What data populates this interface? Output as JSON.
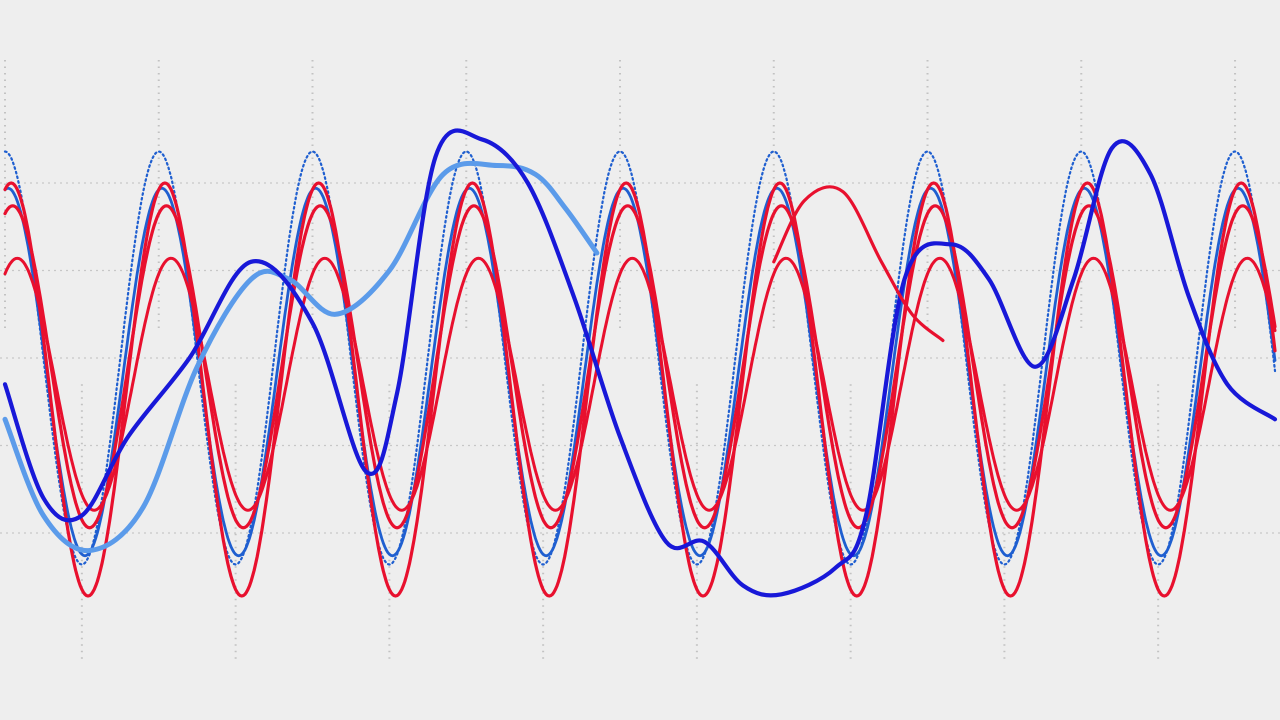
{
  "chart_data": {
    "type": "line",
    "title": "",
    "xlabel": "",
    "ylabel": "",
    "grid": true,
    "legend": "none",
    "xlim": [
      0,
      8.26
    ],
    "ylim": [
      -1.6,
      1.6
    ],
    "grid_y": [
      -1.0,
      -0.5,
      0.0,
      0.5,
      1.0
    ],
    "grid_x_upper": [
      0,
      1,
      2,
      3,
      4,
      5,
      6,
      7,
      8
    ],
    "grid_x_lower": [
      0.5,
      1.5,
      2.5,
      3.5,
      4.5,
      5.5,
      6.5,
      7.5
    ],
    "series": [
      {
        "kind": "sine",
        "amp": 1.18,
        "offset": 0.0,
        "period": 1.0,
        "phase": 0.0,
        "color": "#1f5fd0",
        "dotted": true,
        "width": 2.2
      },
      {
        "kind": "sine",
        "amp": 1.05,
        "offset": -0.08,
        "period": 1.0,
        "phase": 0.02,
        "color": "#1f5fd0",
        "dotted": false,
        "width": 2.8
      },
      {
        "kind": "sine",
        "amp": 1.18,
        "offset": -0.18,
        "period": 1.0,
        "phase": 0.04,
        "color": "#e8102e",
        "dotted": false,
        "width": 3.2
      },
      {
        "kind": "sine",
        "amp": 0.92,
        "offset": -0.05,
        "period": 1.0,
        "phase": 0.05,
        "color": "#e8102e",
        "dotted": false,
        "width": 3.2
      },
      {
        "kind": "sine",
        "amp": 0.72,
        "offset": -0.15,
        "period": 1.0,
        "phase": 0.08,
        "color": "#e8102e",
        "dotted": false,
        "width": 3.0
      },
      {
        "kind": "points",
        "color": "#5b9bea",
        "width": 5,
        "x": [
          0.0,
          0.25,
          0.55,
          0.9,
          1.25,
          1.6,
          1.85,
          2.15,
          2.5,
          2.85,
          3.2,
          3.45,
          3.65,
          3.85
        ],
        "y": [
          -0.35,
          -0.9,
          -1.1,
          -0.85,
          -0.05,
          0.45,
          0.45,
          0.25,
          0.5,
          1.05,
          1.1,
          1.05,
          0.85,
          0.6
        ]
      },
      {
        "kind": "points",
        "color": "#1818d8",
        "width": 4.2,
        "x": [
          0.0,
          0.25,
          0.5,
          0.8,
          1.2,
          1.6,
          2.0,
          2.35,
          2.55,
          2.8,
          3.1,
          3.4,
          3.7,
          4.0,
          4.3,
          4.55,
          4.8,
          5.05,
          5.4,
          5.6,
          5.85,
          6.15,
          6.4,
          6.7,
          6.95,
          7.2,
          7.45,
          7.7,
          7.95,
          8.26
        ],
        "y": [
          -0.15,
          -0.8,
          -0.9,
          -0.45,
          0.0,
          0.55,
          0.2,
          -0.65,
          -0.2,
          1.15,
          1.25,
          1.0,
          0.35,
          -0.45,
          -1.05,
          -1.05,
          -1.3,
          -1.35,
          -1.2,
          -0.9,
          0.45,
          0.65,
          0.45,
          -0.05,
          0.45,
          1.2,
          1.05,
          0.35,
          -0.15,
          -0.35
        ]
      },
      {
        "kind": "points",
        "color": "#e8102e",
        "width": 3.2,
        "x": [
          5.0,
          5.2,
          5.45,
          5.7,
          5.9,
          6.1
        ],
        "y": [
          0.55,
          0.9,
          0.95,
          0.55,
          0.25,
          0.1
        ]
      }
    ]
  }
}
